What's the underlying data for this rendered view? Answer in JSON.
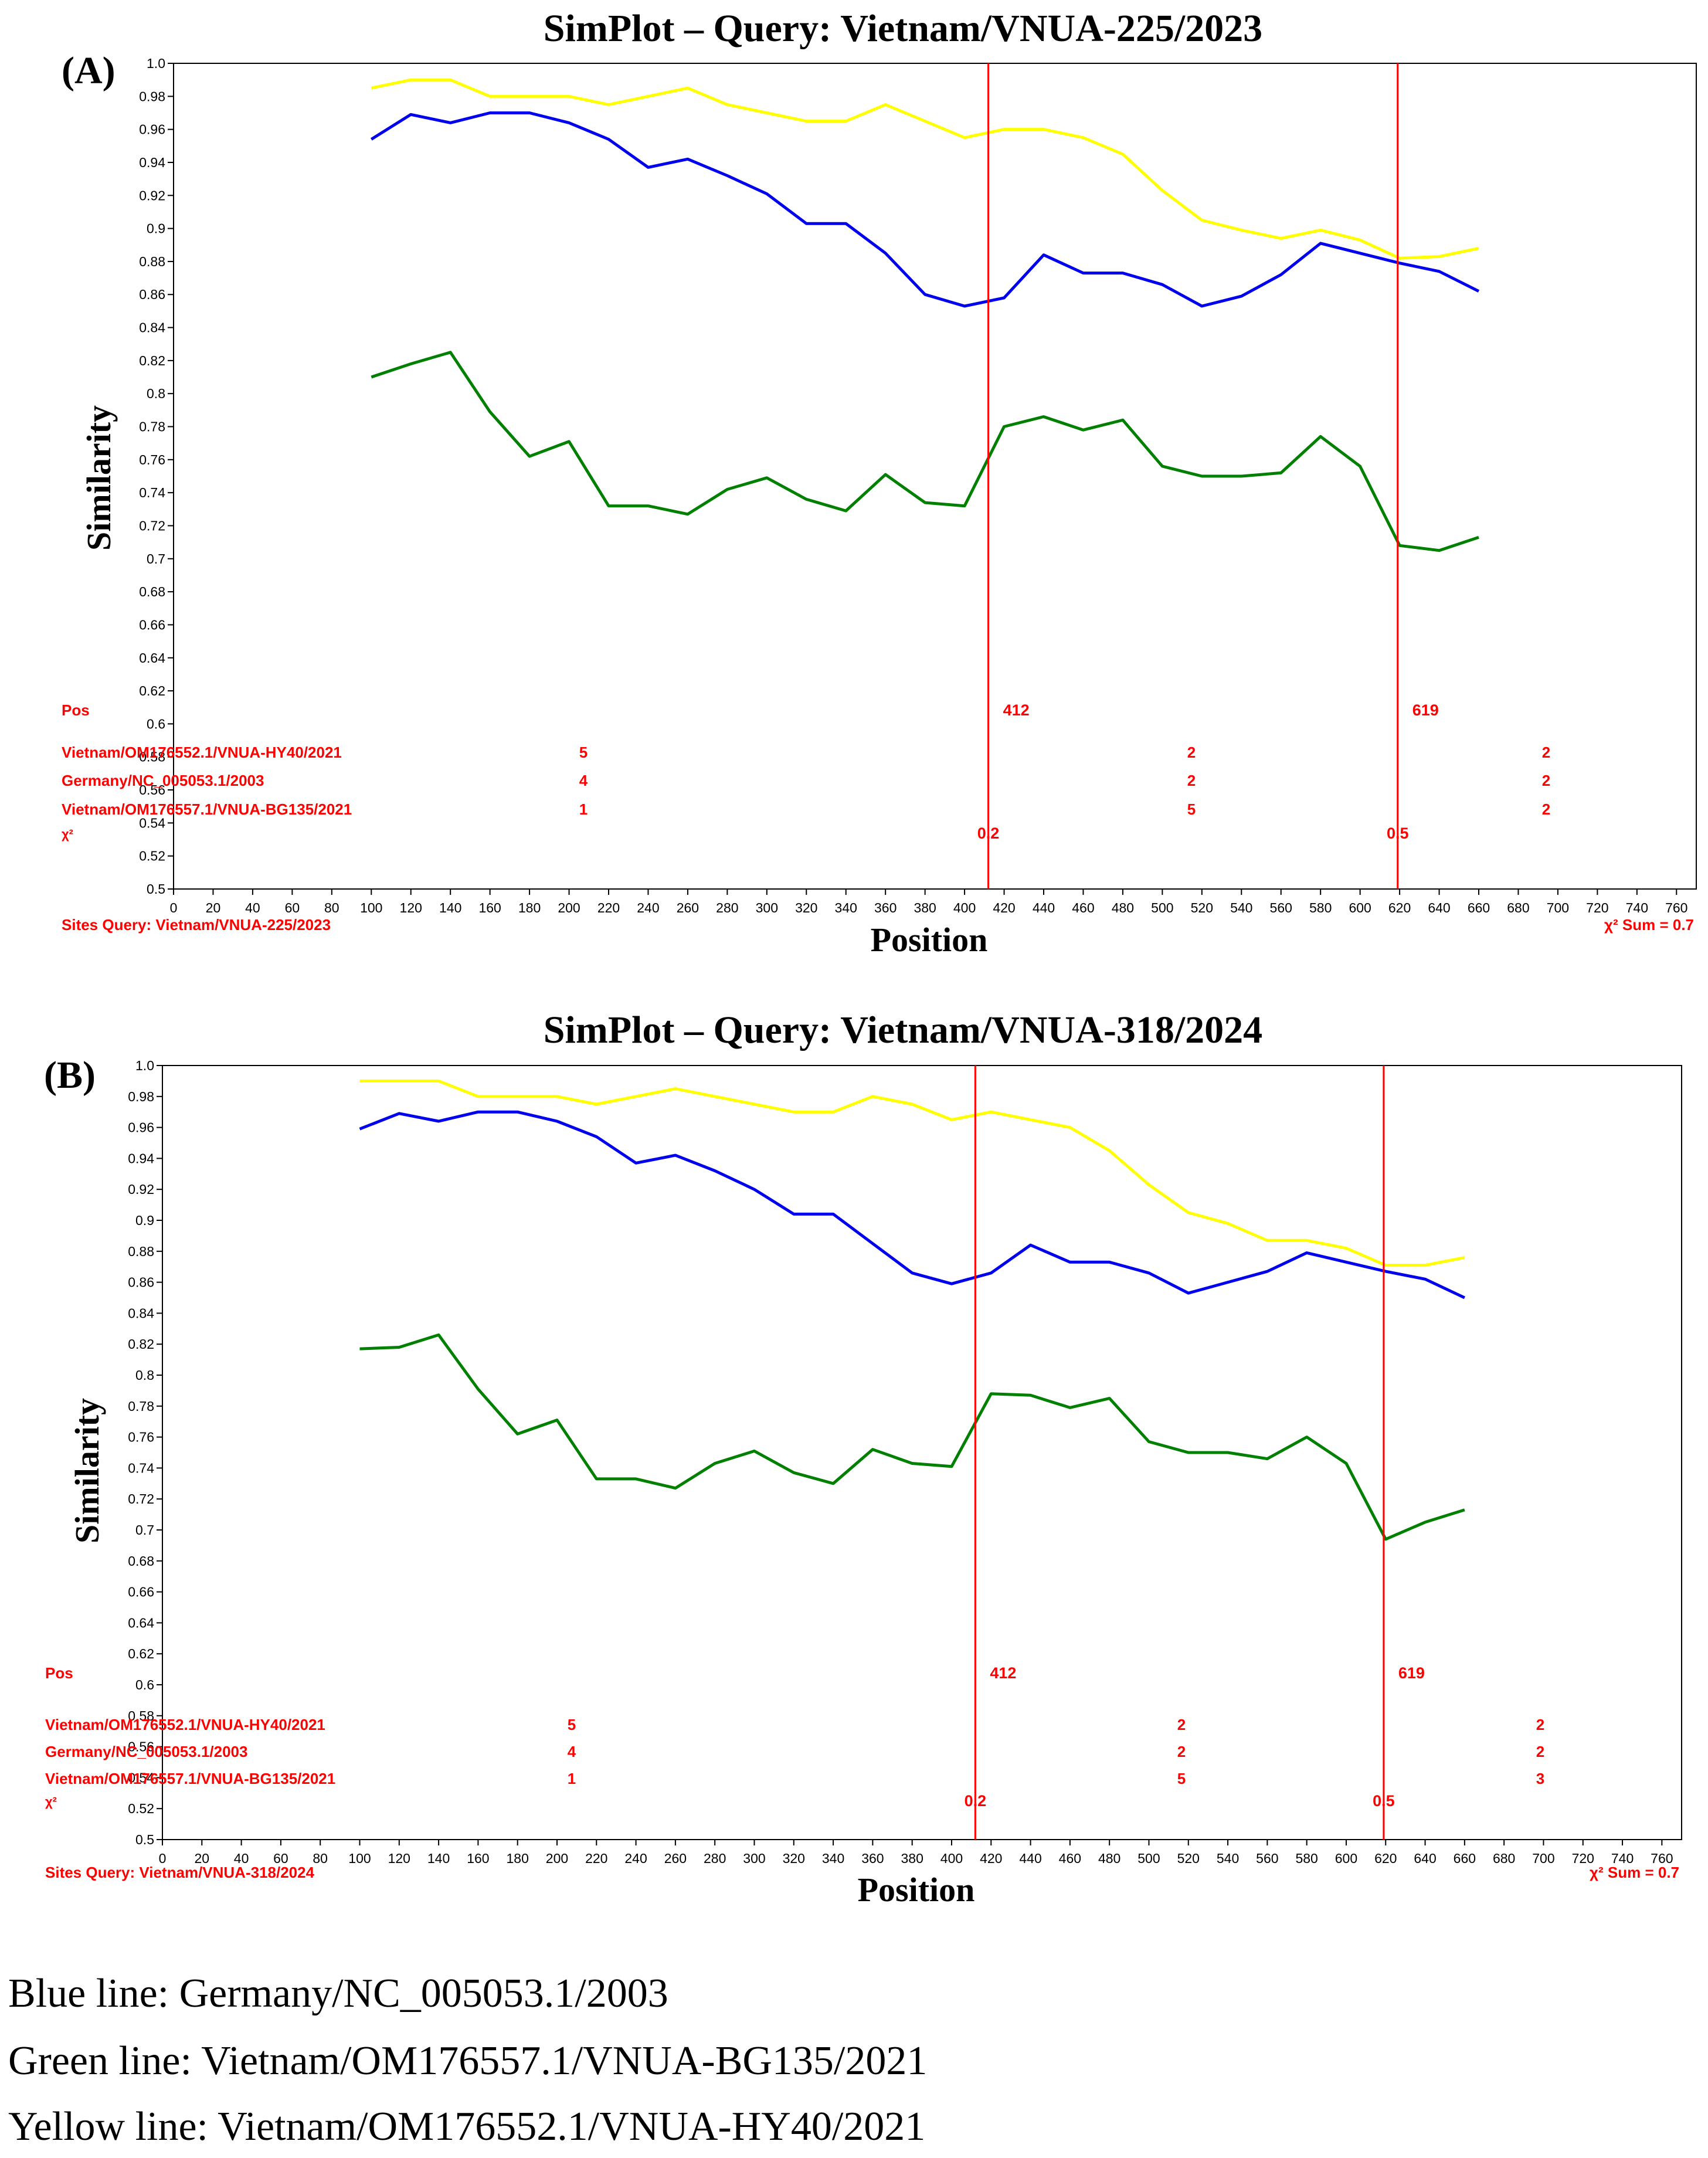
{
  "chart_data": [
    {
      "type": "line",
      "panel_label": "(A)",
      "title": "SimPlot – Query: Vietnam/VNUA-225/2023",
      "xlabel": "Position",
      "ylabel": "Similarity",
      "xlim": [
        0,
        770
      ],
      "ylim": [
        0.5,
        1.0
      ],
      "xticks": [
        0,
        20,
        40,
        60,
        80,
        100,
        120,
        140,
        160,
        180,
        200,
        220,
        240,
        260,
        280,
        300,
        320,
        340,
        360,
        380,
        400,
        420,
        440,
        460,
        480,
        500,
        520,
        540,
        560,
        580,
        600,
        620,
        640,
        660,
        680,
        700,
        720,
        740,
        760
      ],
      "ytick_labels": [
        "0.5",
        "0.52",
        "0.54",
        "0.56",
        "0.58",
        "0.6",
        "0.62",
        "0.64",
        "0.66",
        "0.68",
        "0.7",
        "0.72",
        "0.74",
        "0.76",
        "0.78",
        "0.8",
        "0.82",
        "0.84",
        "0.86",
        "0.88",
        "0.9",
        "0.92",
        "0.94",
        "0.96",
        "0.98",
        "1.0"
      ],
      "breakpoints": [
        {
          "pos": 412,
          "label": "412",
          "chi2": "0.2"
        },
        {
          "pos": 619,
          "label": "619",
          "chi2": "0.5"
        }
      ],
      "table": {
        "pos_label": "Pos",
        "chi_label": "χ²",
        "rows": [
          {
            "name": "Vietnam/OM176552.1/VNUA-HY40/2021",
            "values": [
              "5",
              "2",
              "2"
            ]
          },
          {
            "name": "Germany/NC_005053.1/2003",
            "values": [
              "4",
              "2",
              "2"
            ]
          },
          {
            "name": "Vietnam/OM176557.1/VNUA-BG135/2021",
            "values": [
              "1",
              "5",
              "2"
            ]
          }
        ]
      },
      "sites_query": "Sites Query: Vietnam/VNUA-225/2023",
      "chi_sum": "χ² Sum = 0.7",
      "series": [
        {
          "name": "Vietnam/OM176552.1/VNUA-HY40/2021",
          "color": "#ffff00",
          "x": [
            100,
            120,
            140,
            160,
            180,
            200,
            220,
            240,
            260,
            280,
            300,
            320,
            340,
            360,
            380,
            400,
            420,
            440,
            460,
            480,
            500,
            520,
            540,
            560,
            580,
            600,
            620,
            640,
            660
          ],
          "y": [
            0.985,
            0.99,
            0.99,
            0.98,
            0.98,
            0.98,
            0.975,
            0.98,
            0.985,
            0.975,
            0.97,
            0.965,
            0.965,
            0.975,
            0.965,
            0.955,
            0.96,
            0.96,
            0.955,
            0.945,
            0.923,
            0.905,
            0.899,
            0.894,
            0.899,
            0.893,
            0.882,
            0.883,
            0.888
          ]
        },
        {
          "name": "Germany/NC_005053.1/2003",
          "color": "#0000ee",
          "x": [
            100,
            120,
            140,
            160,
            180,
            200,
            220,
            240,
            260,
            280,
            300,
            320,
            340,
            360,
            380,
            400,
            420,
            440,
            460,
            480,
            500,
            520,
            540,
            560,
            580,
            600,
            620,
            640,
            660
          ],
          "y": [
            0.954,
            0.969,
            0.964,
            0.97,
            0.97,
            0.964,
            0.954,
            0.937,
            0.942,
            0.932,
            0.921,
            0.903,
            0.903,
            0.885,
            0.86,
            0.853,
            0.858,
            0.884,
            0.873,
            0.873,
            0.866,
            0.853,
            0.859,
            0.872,
            0.891,
            0.885,
            0.879,
            0.874,
            0.862
          ]
        },
        {
          "name": "Vietnam/OM176557.1/VNUA-BG135/2021",
          "color": "#008000",
          "x": [
            100,
            120,
            140,
            160,
            180,
            200,
            220,
            240,
            260,
            280,
            300,
            320,
            340,
            360,
            380,
            400,
            420,
            440,
            460,
            480,
            500,
            520,
            540,
            560,
            580,
            600,
            620,
            640,
            660
          ],
          "y": [
            0.81,
            0.818,
            0.825,
            0.789,
            0.762,
            0.771,
            0.732,
            0.732,
            0.727,
            0.742,
            0.749,
            0.736,
            0.729,
            0.751,
            0.734,
            0.732,
            0.78,
            0.786,
            0.778,
            0.784,
            0.756,
            0.75,
            0.75,
            0.752,
            0.774,
            0.756,
            0.708,
            0.705,
            0.713
          ]
        }
      ]
    },
    {
      "type": "line",
      "panel_label": "(B)",
      "title": "SimPlot – Query: Vietnam/VNUA-318/2024",
      "xlabel": "Position",
      "ylabel": "Similarity",
      "xlim": [
        0,
        770
      ],
      "ylim": [
        0.5,
        1.0
      ],
      "xticks": [
        0,
        20,
        40,
        60,
        80,
        100,
        120,
        140,
        160,
        180,
        200,
        220,
        240,
        260,
        280,
        300,
        320,
        340,
        360,
        380,
        400,
        420,
        440,
        460,
        480,
        500,
        520,
        540,
        560,
        580,
        600,
        620,
        640,
        660,
        680,
        700,
        720,
        740,
        760
      ],
      "ytick_labels": [
        "0.5",
        "0.52",
        "0.54",
        "0.56",
        "0.58",
        "0.6",
        "0.62",
        "0.64",
        "0.66",
        "0.68",
        "0.7",
        "0.72",
        "0.74",
        "0.76",
        "0.78",
        "0.8",
        "0.82",
        "0.84",
        "0.86",
        "0.88",
        "0.9",
        "0.92",
        "0.94",
        "0.96",
        "0.98",
        "1.0"
      ],
      "breakpoints": [
        {
          "pos": 412,
          "label": "412",
          "chi2": "0.2"
        },
        {
          "pos": 619,
          "label": "619",
          "chi2": "0.5"
        }
      ],
      "table": {
        "pos_label": "Pos",
        "chi_label": "χ²",
        "rows": [
          {
            "name": "Vietnam/OM176552.1/VNUA-HY40/2021",
            "values": [
              "5",
              "2",
              "2"
            ]
          },
          {
            "name": "Germany/NC_005053.1/2003",
            "values": [
              "4",
              "2",
              "2"
            ]
          },
          {
            "name": "Vietnam/OM176557.1/VNUA-BG135/2021",
            "values": [
              "1",
              "5",
              "3"
            ]
          }
        ]
      },
      "sites_query": "Sites Query: Vietnam/VNUA-318/2024",
      "chi_sum": "χ² Sum = 0.7",
      "series": [
        {
          "name": "Vietnam/OM176552.1/VNUA-HY40/2021",
          "color": "#ffff00",
          "x": [
            100,
            120,
            140,
            160,
            180,
            200,
            220,
            240,
            260,
            280,
            300,
            320,
            340,
            360,
            380,
            400,
            420,
            440,
            460,
            480,
            500,
            520,
            540,
            560,
            580,
            600,
            620,
            640,
            660
          ],
          "y": [
            0.99,
            0.99,
            0.99,
            0.98,
            0.98,
            0.98,
            0.975,
            0.98,
            0.985,
            0.98,
            0.975,
            0.97,
            0.97,
            0.98,
            0.975,
            0.965,
            0.97,
            0.965,
            0.96,
            0.945,
            0.923,
            0.905,
            0.898,
            0.887,
            0.887,
            0.882,
            0.871,
            0.871,
            0.876
          ]
        },
        {
          "name": "Germany/NC_005053.1/2003",
          "color": "#0000ee",
          "x": [
            100,
            120,
            140,
            160,
            180,
            200,
            220,
            240,
            260,
            280,
            300,
            320,
            340,
            360,
            380,
            400,
            420,
            440,
            460,
            480,
            500,
            520,
            540,
            560,
            580,
            600,
            620,
            640,
            660
          ],
          "y": [
            0.959,
            0.969,
            0.964,
            0.97,
            0.97,
            0.964,
            0.954,
            0.937,
            0.942,
            0.932,
            0.92,
            0.904,
            0.904,
            0.885,
            0.866,
            0.859,
            0.866,
            0.884,
            0.873,
            0.873,
            0.866,
            0.853,
            0.86,
            0.867,
            0.879,
            0.873,
            0.867,
            0.862,
            0.85
          ]
        },
        {
          "name": "Vietnam/OM176557.1/VNUA-BG135/2021",
          "color": "#008000",
          "x": [
            100,
            120,
            140,
            160,
            180,
            200,
            220,
            240,
            260,
            280,
            300,
            320,
            340,
            360,
            380,
            400,
            420,
            440,
            460,
            480,
            500,
            520,
            540,
            560,
            580,
            600,
            620,
            640,
            660
          ],
          "y": [
            0.817,
            0.818,
            0.826,
            0.791,
            0.762,
            0.771,
            0.733,
            0.733,
            0.727,
            0.743,
            0.751,
            0.737,
            0.73,
            0.752,
            0.743,
            0.741,
            0.788,
            0.787,
            0.779,
            0.785,
            0.757,
            0.75,
            0.75,
            0.746,
            0.76,
            0.743,
            0.694,
            0.705,
            0.713
          ]
        }
      ]
    }
  ],
  "legend_captions": {
    "blue": "Blue line: Germany/NC_005053.1/2003",
    "green": "Green line:  Vietnam/OM176557.1/VNUA-BG135/2021",
    "yellow": "Yellow line: Vietnam/OM176552.1/VNUA-HY40/2021"
  }
}
